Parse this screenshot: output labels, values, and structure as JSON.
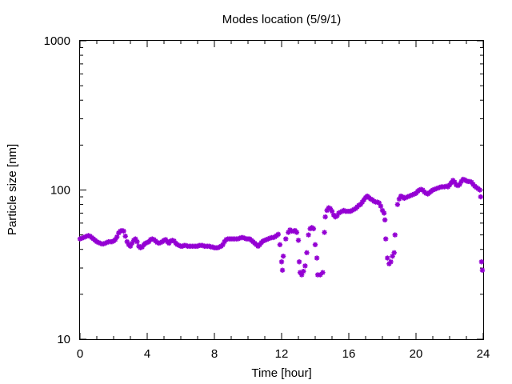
{
  "chart_data": {
    "type": "scatter",
    "title": "Modes location (5/9/1)",
    "xlabel": "Time [hour]",
    "ylabel": "Particle size [nm]",
    "xlim": [
      0,
      24
    ],
    "ylim": [
      10,
      1000
    ],
    "yscale": "log",
    "grid": false,
    "marker_color": "#9400d3",
    "xticks": [
      0,
      4,
      8,
      12,
      16,
      20,
      24
    ],
    "xtick_labels": [
      "0",
      "4",
      "8",
      "12",
      "16",
      "20",
      "24"
    ],
    "yticks": [
      10,
      100,
      1000
    ],
    "ytick_labels": [
      "10",
      "100",
      "1000"
    ],
    "series": [
      {
        "points": [
          [
            0.0,
            47
          ],
          [
            0.1,
            47.5
          ],
          [
            0.2,
            48
          ],
          [
            0.3,
            48.5
          ],
          [
            0.4,
            49
          ],
          [
            0.5,
            49.5
          ],
          [
            0.6,
            49
          ],
          [
            0.7,
            48
          ],
          [
            0.8,
            47
          ],
          [
            0.9,
            46
          ],
          [
            1.0,
            45
          ],
          [
            1.1,
            44.5
          ],
          [
            1.2,
            44
          ],
          [
            1.3,
            43.5
          ],
          [
            1.4,
            43.5
          ],
          [
            1.5,
            44
          ],
          [
            1.6,
            44.5
          ],
          [
            1.7,
            45
          ],
          [
            1.8,
            45
          ],
          [
            1.9,
            45
          ],
          [
            2.0,
            45.5
          ],
          [
            2.1,
            46.5
          ],
          [
            2.2,
            48.5
          ],
          [
            2.3,
            51.5
          ],
          [
            2.4,
            53
          ],
          [
            2.5,
            53.5
          ],
          [
            2.6,
            53
          ],
          [
            2.7,
            49
          ],
          [
            2.8,
            45
          ],
          [
            2.9,
            43
          ],
          [
            3.0,
            42
          ],
          [
            3.1,
            44
          ],
          [
            3.2,
            46
          ],
          [
            3.3,
            47
          ],
          [
            3.4,
            45
          ],
          [
            3.5,
            42
          ],
          [
            3.6,
            41
          ],
          [
            3.7,
            41.5
          ],
          [
            3.8,
            43
          ],
          [
            3.9,
            44
          ],
          [
            4.0,
            44.5
          ],
          [
            4.1,
            45
          ],
          [
            4.2,
            46.5
          ],
          [
            4.3,
            47
          ],
          [
            4.4,
            46.5
          ],
          [
            4.5,
            45.5
          ],
          [
            4.6,
            44.5
          ],
          [
            4.7,
            44
          ],
          [
            4.8,
            44.5
          ],
          [
            4.9,
            45
          ],
          [
            5.0,
            46
          ],
          [
            5.1,
            46.5
          ],
          [
            5.2,
            45
          ],
          [
            5.3,
            44
          ],
          [
            5.4,
            45.5
          ],
          [
            5.5,
            46
          ],
          [
            5.6,
            45.5
          ],
          [
            5.7,
            44
          ],
          [
            5.8,
            43
          ],
          [
            5.9,
            42.5
          ],
          [
            6.0,
            42
          ],
          [
            6.1,
            42
          ],
          [
            6.2,
            42.5
          ],
          [
            6.3,
            42.5
          ],
          [
            6.4,
            42
          ],
          [
            6.5,
            42
          ],
          [
            6.6,
            42
          ],
          [
            6.7,
            42
          ],
          [
            6.8,
            42
          ],
          [
            6.9,
            42
          ],
          [
            7.0,
            42
          ],
          [
            7.1,
            42.5
          ],
          [
            7.2,
            42.5
          ],
          [
            7.3,
            42.5
          ],
          [
            7.4,
            42
          ],
          [
            7.5,
            42
          ],
          [
            7.6,
            42
          ],
          [
            7.7,
            42
          ],
          [
            7.8,
            41.5
          ],
          [
            7.9,
            41.5
          ],
          [
            8.0,
            41
          ],
          [
            8.1,
            41
          ],
          [
            8.2,
            41
          ],
          [
            8.3,
            41.5
          ],
          [
            8.4,
            42
          ],
          [
            8.5,
            43
          ],
          [
            8.6,
            45
          ],
          [
            8.7,
            46.5
          ],
          [
            8.8,
            47
          ],
          [
            8.9,
            47
          ],
          [
            9.0,
            47
          ],
          [
            9.1,
            47
          ],
          [
            9.2,
            47
          ],
          [
            9.3,
            47
          ],
          [
            9.4,
            47
          ],
          [
            9.5,
            47.5
          ],
          [
            9.6,
            48
          ],
          [
            9.7,
            48
          ],
          [
            9.8,
            47.5
          ],
          [
            9.9,
            47
          ],
          [
            10.0,
            47
          ],
          [
            10.1,
            47
          ],
          [
            10.2,
            46
          ],
          [
            10.3,
            45
          ],
          [
            10.4,
            44
          ],
          [
            10.5,
            43
          ],
          [
            10.6,
            42
          ],
          [
            10.7,
            43
          ],
          [
            10.8,
            44.5
          ],
          [
            10.9,
            45.5
          ],
          [
            11.0,
            46
          ],
          [
            11.1,
            46.5
          ],
          [
            11.2,
            47
          ],
          [
            11.3,
            47.5
          ],
          [
            11.4,
            48
          ],
          [
            11.5,
            48
          ],
          [
            11.6,
            48.5
          ],
          [
            11.7,
            49.5
          ],
          [
            11.8,
            50.5
          ],
          [
            11.9,
            43
          ],
          [
            12.0,
            33
          ],
          [
            12.05,
            29
          ],
          [
            12.1,
            36
          ],
          [
            12.25,
            47
          ],
          [
            12.4,
            52
          ],
          [
            12.5,
            54
          ],
          [
            12.6,
            53
          ],
          [
            12.7,
            53
          ],
          [
            12.8,
            53.5
          ],
          [
            12.9,
            52
          ],
          [
            13.0,
            46
          ],
          [
            13.05,
            33
          ],
          [
            13.1,
            28
          ],
          [
            13.2,
            27
          ],
          [
            13.3,
            28.5
          ],
          [
            13.4,
            31
          ],
          [
            13.5,
            38
          ],
          [
            13.6,
            50
          ],
          [
            13.7,
            55
          ],
          [
            13.8,
            56
          ],
          [
            13.9,
            55
          ],
          [
            14.0,
            43
          ],
          [
            14.1,
            35
          ],
          [
            14.15,
            27
          ],
          [
            14.3,
            27
          ],
          [
            14.45,
            28
          ],
          [
            14.55,
            52
          ],
          [
            14.6,
            66
          ],
          [
            14.7,
            73
          ],
          [
            14.8,
            76
          ],
          [
            14.9,
            75
          ],
          [
            15.0,
            72
          ],
          [
            15.1,
            68
          ],
          [
            15.2,
            66
          ],
          [
            15.3,
            67
          ],
          [
            15.4,
            70
          ],
          [
            15.5,
            71
          ],
          [
            15.6,
            72
          ],
          [
            15.7,
            73
          ],
          [
            15.8,
            72
          ],
          [
            15.9,
            72
          ],
          [
            16.0,
            72
          ],
          [
            16.1,
            72
          ],
          [
            16.2,
            73
          ],
          [
            16.3,
            74
          ],
          [
            16.4,
            75
          ],
          [
            16.5,
            77
          ],
          [
            16.6,
            79
          ],
          [
            16.7,
            80
          ],
          [
            16.8,
            83
          ],
          [
            16.9,
            86
          ],
          [
            17.0,
            89
          ],
          [
            17.1,
            91
          ],
          [
            17.2,
            89
          ],
          [
            17.3,
            87
          ],
          [
            17.4,
            86
          ],
          [
            17.5,
            84
          ],
          [
            17.6,
            83
          ],
          [
            17.7,
            83
          ],
          [
            17.8,
            82
          ],
          [
            17.9,
            78
          ],
          [
            18.0,
            73
          ],
          [
            18.1,
            70
          ],
          [
            18.15,
            63
          ],
          [
            18.2,
            47
          ],
          [
            18.3,
            35
          ],
          [
            18.4,
            32
          ],
          [
            18.5,
            33
          ],
          [
            18.6,
            36
          ],
          [
            18.7,
            38
          ],
          [
            18.75,
            50
          ],
          [
            18.9,
            80
          ],
          [
            19.0,
            87
          ],
          [
            19.1,
            91
          ],
          [
            19.2,
            90
          ],
          [
            19.3,
            88
          ],
          [
            19.4,
            89
          ],
          [
            19.5,
            90
          ],
          [
            19.6,
            91
          ],
          [
            19.7,
            92
          ],
          [
            19.8,
            93
          ],
          [
            19.9,
            94
          ],
          [
            20.0,
            95
          ],
          [
            20.1,
            98
          ],
          [
            20.2,
            100
          ],
          [
            20.3,
            101
          ],
          [
            20.4,
            100
          ],
          [
            20.5,
            97
          ],
          [
            20.6,
            95
          ],
          [
            20.7,
            94
          ],
          [
            20.8,
            96
          ],
          [
            20.9,
            98
          ],
          [
            21.0,
            100
          ],
          [
            21.1,
            101
          ],
          [
            21.2,
            102
          ],
          [
            21.3,
            103
          ],
          [
            21.4,
            104
          ],
          [
            21.5,
            105
          ],
          [
            21.6,
            105
          ],
          [
            21.7,
            105
          ],
          [
            21.8,
            106
          ],
          [
            21.9,
            105
          ],
          [
            22.0,
            108
          ],
          [
            22.1,
            112
          ],
          [
            22.2,
            116
          ],
          [
            22.3,
            113
          ],
          [
            22.4,
            108
          ],
          [
            22.5,
            107
          ],
          [
            22.6,
            109
          ],
          [
            22.7,
            114
          ],
          [
            22.8,
            118
          ],
          [
            22.9,
            117
          ],
          [
            23.0,
            115
          ],
          [
            23.1,
            114
          ],
          [
            23.2,
            114
          ],
          [
            23.3,
            113
          ],
          [
            23.4,
            109
          ],
          [
            23.5,
            106
          ],
          [
            23.6,
            104
          ],
          [
            23.7,
            102
          ],
          [
            23.8,
            100
          ],
          [
            23.85,
            90
          ],
          [
            23.9,
            33
          ],
          [
            23.95,
            29
          ]
        ]
      }
    ]
  }
}
